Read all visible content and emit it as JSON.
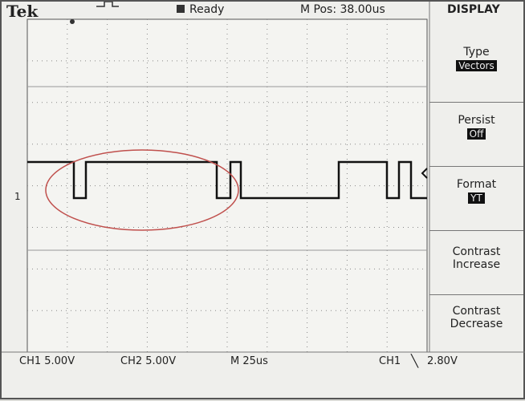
{
  "header": {
    "logo": "Tek",
    "status": "Ready",
    "position": "M Pos: 38.00us"
  },
  "menu": {
    "title": "DISPLAY",
    "items": [
      {
        "label": "Type",
        "value": "Vectors"
      },
      {
        "label": "Persist",
        "value": "Off"
      },
      {
        "label": "Format",
        "value": "YT"
      },
      {
        "label": "Contrast Increase"
      },
      {
        "label": "Contrast Decrease"
      }
    ]
  },
  "channel_marker": "1",
  "footer": {
    "ch1": "CH1 5.00V",
    "ch2": "CH2 5.00V",
    "timebase": "M 25us",
    "trigger_source": "CH1",
    "trigger_level": "2.80V"
  }
}
